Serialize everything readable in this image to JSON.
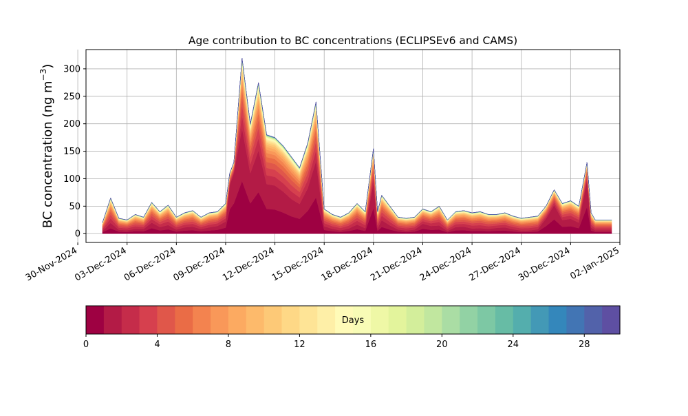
{
  "chart_data": {
    "type": "area",
    "title": "Age contribution to BC concentrations (ECLIPSEv6 and CAMS)",
    "ylabel_main": "BC concentration (ng m",
    "ylabel_sup": "−3",
    "ylabel_close": ")",
    "xlabel": "",
    "grid": true,
    "ylim": [
      -16,
      335
    ],
    "xlim": [
      "2024-11-30T12:00",
      "2025-01-02T00:00"
    ],
    "x_ticks": [
      "30-Nov-2024",
      "03-Dec-2024",
      "06-Dec-2024",
      "09-Dec-2024",
      "12-Dec-2024",
      "15-Dec-2024",
      "18-Dec-2024",
      "21-Dec-2024",
      "24-Dec-2024",
      "27-Dec-2024",
      "30-Dec-2024",
      "02-Jan-2025"
    ],
    "y_ticks": [
      "0",
      "50",
      "100",
      "150",
      "200",
      "250",
      "300"
    ],
    "x": [
      "2024-12-01T12:00",
      "2024-12-02T00:00",
      "2024-12-02T12:00",
      "2024-12-03T00:00",
      "2024-12-03T12:00",
      "2024-12-04T00:00",
      "2024-12-04T12:00",
      "2024-12-05T00:00",
      "2024-12-05T12:00",
      "2024-12-06T00:00",
      "2024-12-06T12:00",
      "2024-12-07T00:00",
      "2024-12-07T12:00",
      "2024-12-08T00:00",
      "2024-12-08T12:00",
      "2024-12-09T00:00",
      "2024-12-09T06:00",
      "2024-12-09T12:00",
      "2024-12-10T00:00",
      "2024-12-10T12:00",
      "2024-12-11T00:00",
      "2024-12-11T12:00",
      "2024-12-12T00:00",
      "2024-12-12T12:00",
      "2024-12-13T00:00",
      "2024-12-13T12:00",
      "2024-12-14T00:00",
      "2024-12-14T12:00",
      "2024-12-15T00:00",
      "2024-12-15T12:00",
      "2024-12-16T00:00",
      "2024-12-16T12:00",
      "2024-12-17T00:00",
      "2024-12-17T12:00",
      "2024-12-18T00:00",
      "2024-12-18T06:00",
      "2024-12-18T12:00",
      "2024-12-19T00:00",
      "2024-12-19T12:00",
      "2024-12-20T00:00",
      "2024-12-20T12:00",
      "2024-12-21T00:00",
      "2024-12-21T12:00",
      "2024-12-22T00:00",
      "2024-12-22T12:00",
      "2024-12-23T00:00",
      "2024-12-23T12:00",
      "2024-12-24T00:00",
      "2024-12-24T12:00",
      "2024-12-25T00:00",
      "2024-12-25T12:00",
      "2024-12-26T00:00",
      "2024-12-26T12:00",
      "2024-12-27T00:00",
      "2024-12-27T12:00",
      "2024-12-28T00:00",
      "2024-12-28T12:00",
      "2024-12-29T00:00",
      "2024-12-29T12:00",
      "2024-12-30T00:00",
      "2024-12-30T12:00",
      "2024-12-31T00:00",
      "2024-12-31T06:00",
      "2024-12-31T12:00",
      "2025-01-01T00:00",
      "2025-01-01T12:00"
    ],
    "total": [
      20,
      65,
      28,
      25,
      35,
      30,
      57,
      40,
      52,
      30,
      38,
      42,
      30,
      38,
      40,
      55,
      110,
      130,
      320,
      200,
      275,
      180,
      175,
      160,
      140,
      120,
      165,
      240,
      45,
      35,
      30,
      38,
      55,
      40,
      155,
      40,
      70,
      50,
      30,
      28,
      30,
      45,
      40,
      50,
      25,
      40,
      42,
      38,
      40,
      35,
      35,
      38,
      32,
      28,
      30,
      32,
      50,
      80,
      55,
      60,
      50,
      130,
      38,
      25,
      25,
      25
    ],
    "young_fraction": [
      0.25,
      0.3,
      0.25,
      0.25,
      0.25,
      0.28,
      0.35,
      0.3,
      0.3,
      0.25,
      0.3,
      0.3,
      0.28,
      0.3,
      0.35,
      0.4,
      0.8,
      0.85,
      0.6,
      0.55,
      0.55,
      0.5,
      0.5,
      0.48,
      0.45,
      0.45,
      0.5,
      0.55,
      0.3,
      0.25,
      0.2,
      0.25,
      0.3,
      0.25,
      0.6,
      0.25,
      0.35,
      0.3,
      0.25,
      0.2,
      0.25,
      0.4,
      0.35,
      0.3,
      0.2,
      0.3,
      0.3,
      0.25,
      0.25,
      0.25,
      0.3,
      0.3,
      0.25,
      0.2,
      0.2,
      0.25,
      0.55,
      0.65,
      0.45,
      0.45,
      0.4,
      0.75,
      0.3,
      0.25,
      0.25,
      0.25
    ],
    "colorbar": {
      "label": "Days",
      "min": 0,
      "max": 30,
      "n_bins": 30,
      "ticks": [
        "0",
        "4",
        "8",
        "12",
        "16",
        "20",
        "24",
        "28"
      ],
      "colors": [
        "#9e0142",
        "#b31b46",
        "#c52c4a",
        "#d6404e",
        "#e0574a",
        "#ea6c46",
        "#f3834f",
        "#f99859",
        "#fcaa61",
        "#fdba6b",
        "#fdc977",
        "#fed886",
        "#fee496",
        "#feefa7",
        "#fffbb8",
        "#f8fcb6",
        "#eff8a6",
        "#e3f49c",
        "#d3ee9b",
        "#c1e79f",
        "#aadda4",
        "#92d2a4",
        "#7dc8a4",
        "#67bca5",
        "#54aead",
        "#4399b6",
        "#3487bb",
        "#4275b4",
        "#5262aa",
        "#5e4fa2"
      ]
    }
  }
}
